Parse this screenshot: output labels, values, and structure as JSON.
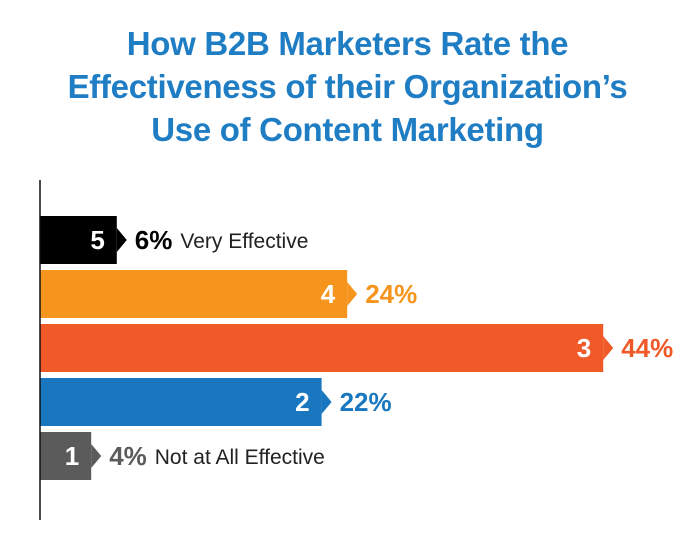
{
  "header": {
    "title_lines": [
      "How B2B Marketers Rate the",
      "Effectiveness of their Organization’s",
      "Use of Content Marketing"
    ]
  },
  "chart_data": {
    "type": "bar",
    "orientation": "horizontal",
    "title": "How B2B Marketers Rate the Effectiveness of their Organization’s Use of Content Marketing",
    "categories": [
      "5",
      "4",
      "3",
      "2",
      "1"
    ],
    "values": [
      6,
      24,
      44,
      22,
      4
    ],
    "value_labels": [
      "6%",
      "24%",
      "44%",
      "22%",
      "4%"
    ],
    "annotations": [
      "Very Effective",
      "",
      "",
      "",
      "Not at All Effective"
    ],
    "colors": [
      "#000000",
      "#f5951e",
      "#f05a28",
      "#1877bf",
      "#5b5b5b"
    ],
    "label_colors": [
      "#000000",
      "#f5951e",
      "#f05a28",
      "#1877bf",
      "#5b5b5b"
    ],
    "xlim": [
      0,
      50
    ],
    "grid": false,
    "legend": "none"
  }
}
